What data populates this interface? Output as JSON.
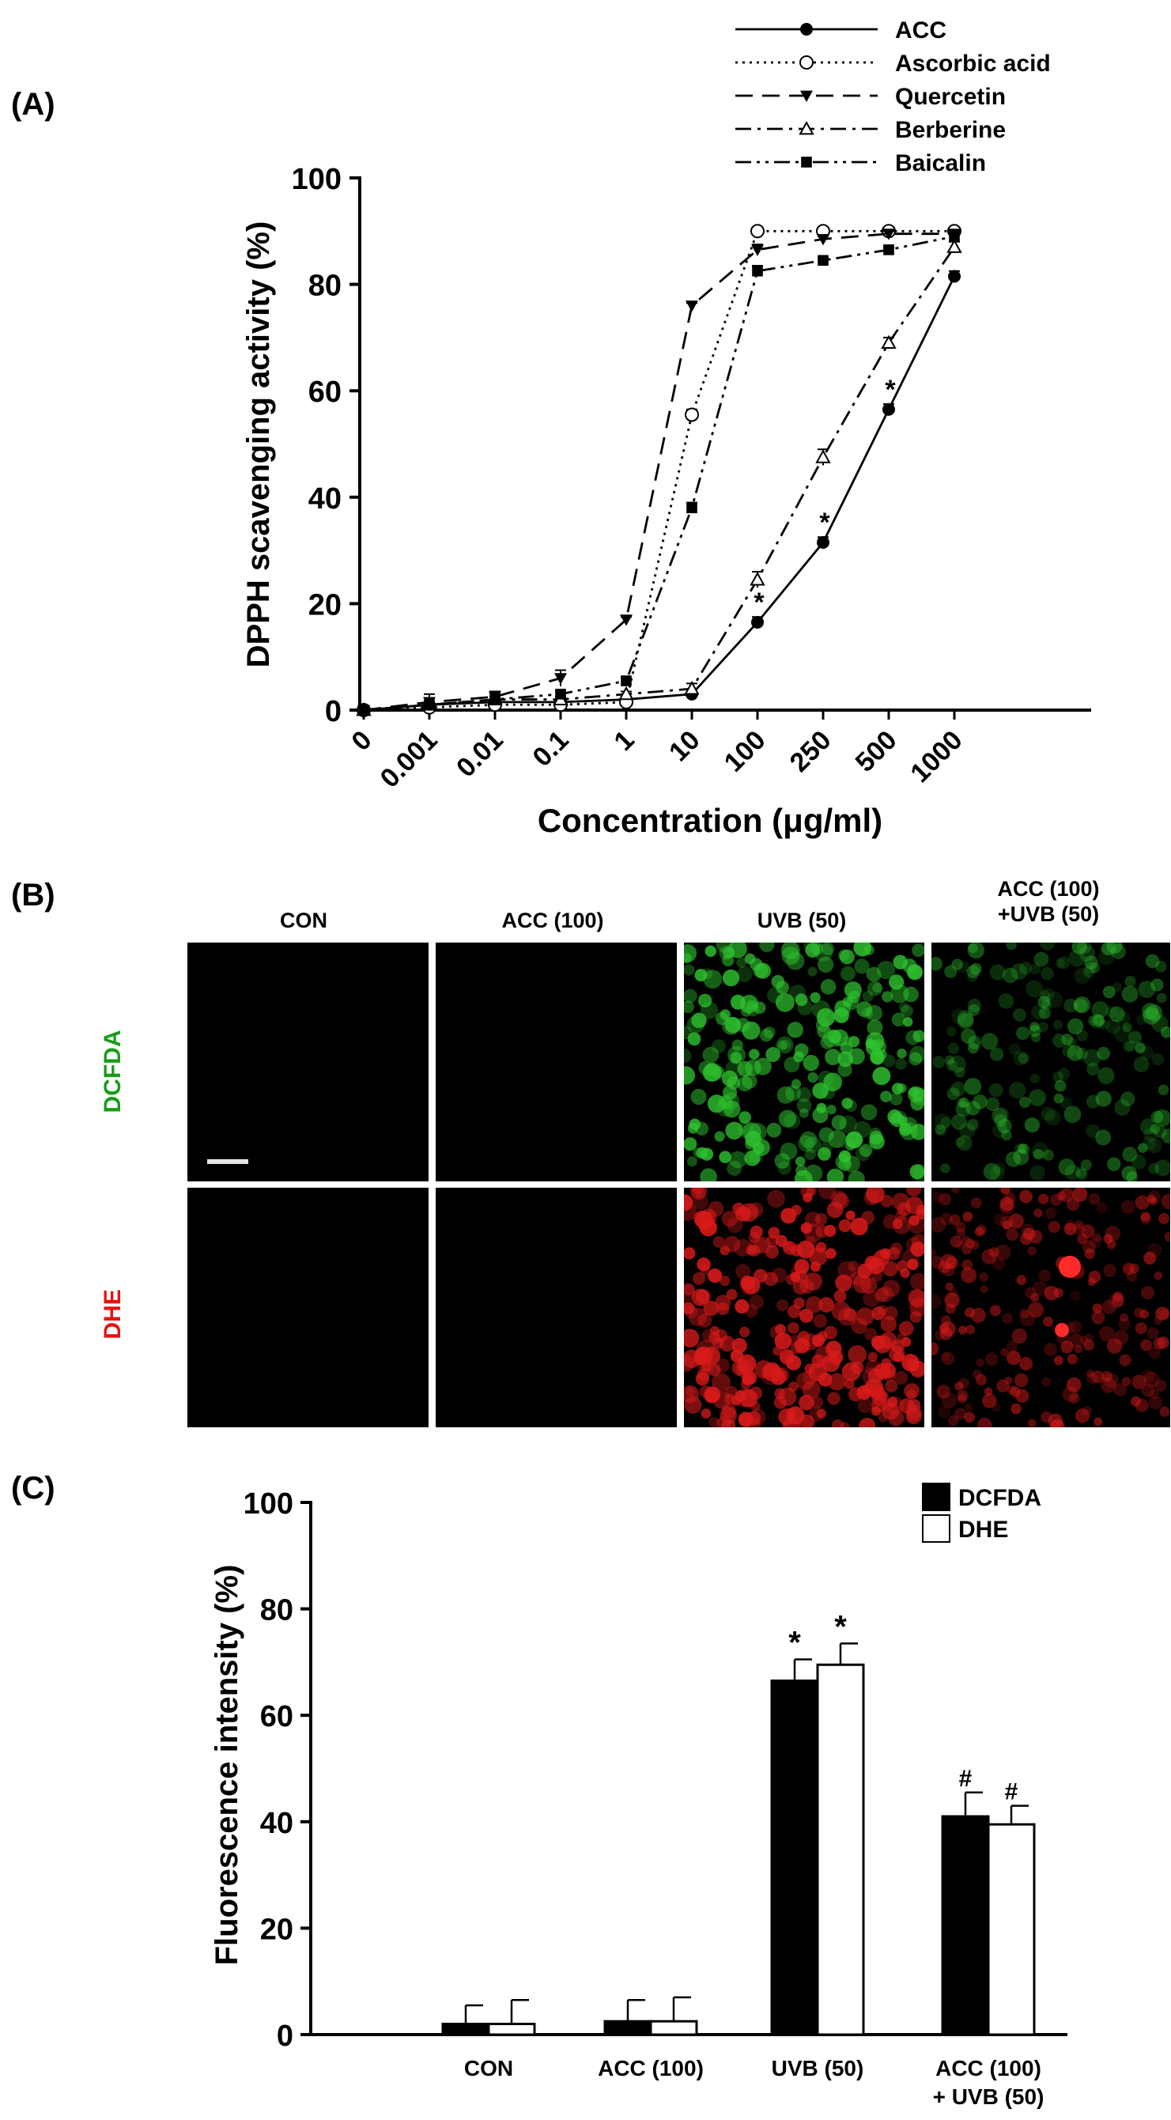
{
  "panelA": {
    "letter": "(A)",
    "chart_data": {
      "type": "line",
      "x": [
        "0",
        "0.001",
        "0.01",
        "0.1",
        "1",
        "10",
        "100",
        "250",
        "500",
        "1000"
      ],
      "xlabel": "Concentration (μg/ml)",
      "ylabel": "DPPH scavenging activity (%)",
      "ylim": [
        0,
        100
      ],
      "yticks": [
        0,
        20,
        40,
        60,
        80,
        100
      ],
      "legend_position": "top-right",
      "series": [
        {
          "name": "ACC",
          "marker": "filled-circle",
          "dash": "solid",
          "values": [
            0,
            1,
            1.5,
            1.5,
            2,
            3,
            16.5,
            31.5,
            56.5,
            81.5
          ],
          "errors": [
            0.5,
            0.5,
            0.5,
            0.5,
            0.5,
            0.5,
            1,
            1,
            1,
            1
          ],
          "significant": [
            false,
            false,
            false,
            false,
            false,
            false,
            true,
            true,
            true,
            false
          ]
        },
        {
          "name": "Ascorbic acid",
          "marker": "open-circle",
          "dash": "dotted",
          "values": [
            0,
            0.5,
            1,
            1,
            1.5,
            55.5,
            90,
            90,
            90,
            90
          ],
          "errors": [
            0.5,
            0.5,
            0.5,
            0.5,
            0.5,
            1,
            0.5,
            0.5,
            0.5,
            0.5
          ],
          "significant": []
        },
        {
          "name": "Quercetin",
          "marker": "filled-triangle-down",
          "dash": "dashed",
          "values": [
            0,
            1.5,
            2.5,
            6,
            17,
            76,
            86.5,
            88.5,
            89.5,
            89.5
          ],
          "errors": [
            0.5,
            1.5,
            1,
            1.5,
            0.5,
            0.5,
            1,
            0.5,
            0.5,
            0.5
          ],
          "significant": []
        },
        {
          "name": "Berberine",
          "marker": "open-triangle-up",
          "dash": "dash-dot",
          "values": [
            0,
            1,
            2,
            2,
            3,
            4,
            24.5,
            47.5,
            69,
            87
          ],
          "errors": [
            0.5,
            0.5,
            0.5,
            0.5,
            0.5,
            1,
            1.5,
            1.5,
            1,
            1
          ],
          "significant": []
        },
        {
          "name": "Baicalin",
          "marker": "filled-square",
          "dash": "dash-dot-dot",
          "values": [
            0,
            1,
            2,
            3,
            5.5,
            38,
            82.5,
            84.5,
            86.5,
            89
          ],
          "errors": [
            0.5,
            0.5,
            0.5,
            0.5,
            0.5,
            1,
            1,
            0.5,
            0.5,
            0.5
          ],
          "significant": []
        }
      ]
    }
  },
  "panelB": {
    "letter": "(B)",
    "columns": [
      "CON",
      "ACC (100)",
      "UVB (50)",
      "ACC (100)\n+UVB (50)"
    ],
    "rows": [
      {
        "label": "DCFDA",
        "color": "#1a9a1a"
      },
      {
        "label": "DHE",
        "color": "#e81010"
      }
    ],
    "image_colors": {
      "background": "#000000",
      "green": "#2fc22f",
      "red": "#d81a1a"
    }
  },
  "panelC": {
    "letter": "(C)",
    "chart_data": {
      "type": "bar",
      "categories": [
        "CON",
        "ACC (100)",
        "UVB (50)",
        "ACC (100)\n+ UVB (50)"
      ],
      "ylabel": "Fluorescence intensity (%)",
      "ylim": [
        0,
        100
      ],
      "yticks": [
        0,
        20,
        40,
        60,
        80,
        100
      ],
      "legend_position": "top-right",
      "series": [
        {
          "name": "DCFDA",
          "fill": "#000000",
          "values": [
            2,
            2.5,
            66.5,
            41
          ],
          "errors": [
            3.5,
            4,
            4,
            4.5
          ],
          "annotations": [
            "",
            "",
            "*",
            "#"
          ]
        },
        {
          "name": "DHE",
          "fill": "#ffffff",
          "values": [
            2,
            2.5,
            69.5,
            39.5
          ],
          "errors": [
            4.5,
            4.5,
            4,
            3.5
          ],
          "annotations": [
            "",
            "",
            "*",
            "#"
          ]
        }
      ]
    }
  }
}
